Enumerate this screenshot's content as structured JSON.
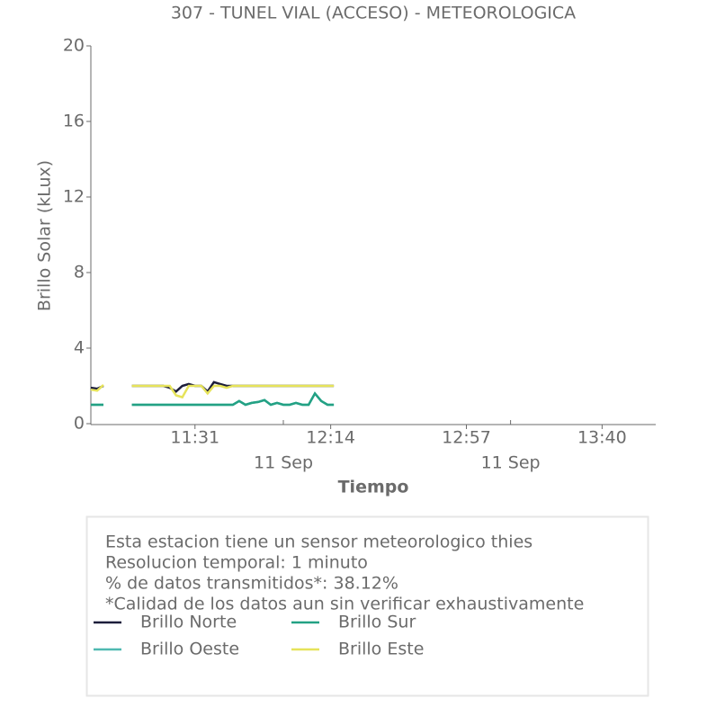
{
  "chart_data": {
    "type": "line",
    "title": "307 - TUNEL VIAL (ACCESO) - METEOROLOGICA",
    "xlabel": "Tiempo",
    "ylabel": "Brillo Solar (kLux)",
    "x": [
      "10:58",
      "11:00",
      "11:02",
      "11:06",
      "11:11",
      "11:13",
      "11:15",
      "11:17",
      "11:19",
      "11:21",
      "11:23",
      "11:25",
      "11:27",
      "11:29",
      "11:31",
      "11:33",
      "11:35",
      "11:37",
      "11:39",
      "11:41",
      "11:43",
      "11:45",
      "11:47",
      "11:49",
      "11:51",
      "11:53",
      "11:55",
      "11:57",
      "11:59",
      "12:01",
      "12:03",
      "12:05",
      "12:07",
      "12:09",
      "12:11",
      "12:13",
      "12:15"
    ],
    "series": [
      {
        "name": "Brillo Norte",
        "color": "#1c1d3b",
        "values": [
          1.9,
          1.85,
          2.0,
          null,
          2.0,
          2.0,
          2.0,
          2.0,
          2.0,
          2.0,
          1.9,
          1.7,
          2.0,
          2.1,
          2.0,
          2.0,
          1.7,
          2.2,
          2.1,
          2.0,
          2.0,
          2.0,
          2.0,
          2.0,
          2.0,
          2.0,
          2.0,
          2.0,
          2.0,
          2.0,
          2.0,
          2.0,
          2.0,
          2.0,
          2.0,
          2.0,
          2.0
        ]
      },
      {
        "name": "Brillo Sur",
        "color": "#23a184",
        "values": [
          1.0,
          1.0,
          1.0,
          null,
          1.0,
          1.0,
          1.0,
          1.0,
          1.0,
          1.0,
          1.0,
          1.0,
          1.0,
          1.0,
          1.0,
          1.0,
          1.0,
          1.0,
          1.0,
          1.0,
          1.0,
          1.2,
          1.0,
          1.1,
          1.15,
          1.25,
          1.0,
          1.1,
          1.0,
          1.0,
          1.1,
          1.0,
          1.0,
          1.6,
          1.2,
          1.0,
          1.0
        ]
      },
      {
        "name": "Brillo Oeste",
        "color": "#4fb9b1",
        "values": [
          1.0,
          1.0,
          1.0,
          null,
          1.0,
          1.0,
          1.0,
          1.0,
          1.0,
          1.0,
          1.0,
          1.0,
          1.0,
          1.0,
          1.0,
          1.0,
          1.0,
          1.0,
          1.0,
          1.0,
          1.0,
          1.2,
          1.0,
          1.1,
          1.15,
          1.25,
          1.0,
          1.1,
          1.0,
          1.0,
          1.1,
          1.0,
          1.0,
          1.6,
          1.2,
          1.0,
          1.0
        ]
      },
      {
        "name": "Brillo Este",
        "color": "#e6e35a",
        "values": [
          1.8,
          1.75,
          2.05,
          null,
          2.0,
          2.0,
          2.0,
          2.0,
          2.0,
          2.0,
          2.0,
          1.5,
          1.4,
          2.0,
          2.0,
          2.0,
          1.6,
          2.0,
          2.0,
          1.9,
          2.0,
          2.0,
          2.0,
          2.0,
          2.0,
          2.0,
          2.0,
          2.0,
          2.0,
          2.0,
          2.0,
          2.0,
          2.0,
          2.0,
          2.0,
          2.0,
          2.0
        ]
      }
    ],
    "xlim": [
      "10:58",
      "13:57"
    ],
    "xticks": [
      "11:31",
      "12:14",
      "12:57",
      "13:40"
    ],
    "date_ticks": [
      {
        "value": "11:59",
        "label": "11 Sep"
      },
      {
        "value": "13:11",
        "label": "11 Sep"
      }
    ],
    "ylim": [
      0,
      20
    ],
    "yticks": [
      0,
      4,
      8,
      12,
      16,
      20
    ],
    "notes": [
      "Esta estacion tiene un sensor meteorologico thies",
      "Resolucion temporal: 1 minuto",
      "% de datos transmitidos*: 38.12%",
      "*Calidad de los datos aun sin verificar exhaustivamente"
    ]
  }
}
